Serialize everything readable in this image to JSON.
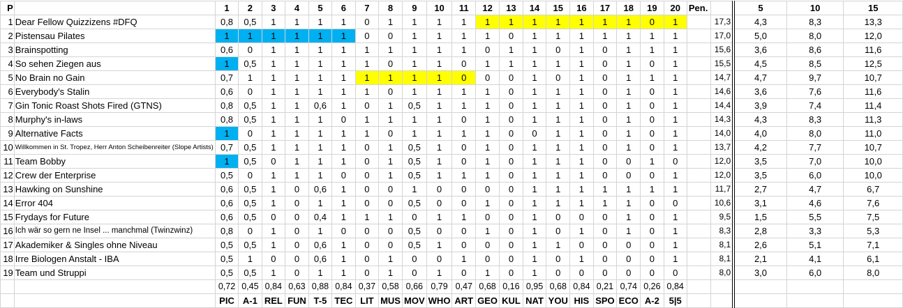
{
  "header": {
    "rank": "P",
    "questions": [
      "1",
      "2",
      "3",
      "4",
      "5",
      "6",
      "7",
      "8",
      "9",
      "10",
      "11",
      "12",
      "13",
      "14",
      "15",
      "16",
      "17",
      "18",
      "19",
      "20"
    ],
    "pen": "Pen.",
    "after": [
      "5",
      "10",
      "15"
    ]
  },
  "colors": {
    "blue": "#00B0F0",
    "yellow": "#FFFF00"
  },
  "rows": [
    {
      "rank": "1",
      "name": "Dear Fellow Quizzizens #DFQ",
      "values": [
        "0,8",
        "0,5",
        "1",
        "1",
        "1",
        "1",
        "0",
        "1",
        "1",
        "1",
        "1",
        "1",
        "1",
        "1",
        "1",
        "1",
        "1",
        "1",
        "0",
        "1"
      ],
      "total": "17,3",
      "after": [
        "4,3",
        "8,3",
        "13,3"
      ],
      "highlight": {
        "color": "yellow",
        "cols": [
          12,
          13,
          14,
          15,
          16,
          17,
          18,
          19,
          20
        ]
      }
    },
    {
      "rank": "2",
      "name": "Pistensau Pilates",
      "values": [
        "1",
        "1",
        "1",
        "1",
        "1",
        "1",
        "0",
        "0",
        "1",
        "1",
        "1",
        "1",
        "0",
        "1",
        "1",
        "1",
        "1",
        "1",
        "1",
        "1"
      ],
      "total": "17,0",
      "after": [
        "5,0",
        "8,0",
        "12,0"
      ],
      "highlight": {
        "color": "blue",
        "cols": [
          1,
          2,
          3,
          4,
          5,
          6
        ]
      }
    },
    {
      "rank": "3",
      "name": "Brainspotting",
      "values": [
        "0,6",
        "0",
        "1",
        "1",
        "1",
        "1",
        "1",
        "1",
        "1",
        "1",
        "1",
        "0",
        "1",
        "1",
        "0",
        "1",
        "0",
        "1",
        "1",
        "1"
      ],
      "total": "15,6",
      "after": [
        "3,6",
        "8,6",
        "11,6"
      ]
    },
    {
      "rank": "4",
      "name": "So sehen Ziegen aus",
      "values": [
        "1",
        "0,5",
        "1",
        "1",
        "1",
        "1",
        "1",
        "0",
        "1",
        "1",
        "0",
        "1",
        "1",
        "1",
        "1",
        "1",
        "0",
        "1",
        "0",
        "1"
      ],
      "total": "15,5",
      "after": [
        "4,5",
        "8,5",
        "12,5"
      ],
      "highlight": {
        "color": "blue",
        "cols": [
          1
        ]
      }
    },
    {
      "rank": "5",
      "name": "No Brain no Gain",
      "values": [
        "0,7",
        "1",
        "1",
        "1",
        "1",
        "1",
        "1",
        "1",
        "1",
        "1",
        "0",
        "0",
        "0",
        "1",
        "0",
        "1",
        "0",
        "1",
        "1",
        "1"
      ],
      "total": "14,7",
      "after": [
        "4,7",
        "9,7",
        "10,7"
      ],
      "highlight": {
        "color": "yellow",
        "cols": [
          7,
          8,
          9,
          10,
          11
        ]
      }
    },
    {
      "rank": "6",
      "name": "Everybody's Stalin",
      "values": [
        "0,6",
        "0",
        "1",
        "1",
        "1",
        "1",
        "1",
        "0",
        "1",
        "1",
        "1",
        "1",
        "0",
        "1",
        "1",
        "1",
        "0",
        "1",
        "0",
        "1"
      ],
      "total": "14,6",
      "after": [
        "3,6",
        "7,6",
        "11,6"
      ]
    },
    {
      "rank": "7",
      "name": "Gin Tonic Roast Shots Fired (GTNS)",
      "values": [
        "0,8",
        "0,5",
        "1",
        "1",
        "0,6",
        "1",
        "0",
        "1",
        "0,5",
        "1",
        "1",
        "1",
        "0",
        "1",
        "1",
        "1",
        "0",
        "1",
        "0",
        "1"
      ],
      "total": "14,4",
      "after": [
        "3,9",
        "7,4",
        "11,4"
      ]
    },
    {
      "rank": "8",
      "name": "Murphy's in-laws",
      "values": [
        "0,8",
        "0,5",
        "1",
        "1",
        "1",
        "0",
        "1",
        "1",
        "1",
        "1",
        "0",
        "1",
        "0",
        "1",
        "1",
        "1",
        "0",
        "1",
        "0",
        "1"
      ],
      "total": "14,3",
      "after": [
        "4,3",
        "8,3",
        "11,3"
      ]
    },
    {
      "rank": "9",
      "name": "Alternative Facts",
      "values": [
        "1",
        "0",
        "1",
        "1",
        "1",
        "1",
        "1",
        "0",
        "1",
        "1",
        "1",
        "1",
        "0",
        "0",
        "1",
        "1",
        "0",
        "1",
        "0",
        "1"
      ],
      "total": "14,0",
      "after": [
        "4,0",
        "8,0",
        "11,0"
      ],
      "highlight": {
        "color": "blue",
        "cols": [
          1
        ]
      }
    },
    {
      "rank": "10",
      "name": "Willkommen in St. Tropez, Herr Anton Scheibenreiter (Slope Artists)",
      "values": [
        "0,7",
        "0,5",
        "1",
        "1",
        "1",
        "1",
        "0",
        "1",
        "0,5",
        "1",
        "0",
        "1",
        "0",
        "1",
        "1",
        "1",
        "0",
        "1",
        "0",
        "1"
      ],
      "total": "13,7",
      "after": [
        "4,2",
        "7,7",
        "10,7"
      ],
      "size": "small10"
    },
    {
      "rank": "11",
      "name": "Team Bobby",
      "values": [
        "1",
        "0,5",
        "0",
        "1",
        "1",
        "1",
        "0",
        "1",
        "0,5",
        "1",
        "0",
        "1",
        "0",
        "1",
        "1",
        "1",
        "0",
        "0",
        "1",
        "0"
      ],
      "total": "12,0",
      "after": [
        "3,5",
        "7,0",
        "10,0"
      ],
      "highlight": {
        "color": "blue",
        "cols": [
          1
        ]
      }
    },
    {
      "rank": "12",
      "name": "Crew der Enterprise",
      "values": [
        "0,5",
        "0",
        "1",
        "1",
        "1",
        "0",
        "0",
        "1",
        "0,5",
        "1",
        "1",
        "1",
        "0",
        "1",
        "1",
        "1",
        "0",
        "0",
        "0",
        "1"
      ],
      "total": "12,0",
      "after": [
        "3,5",
        "6,0",
        "10,0"
      ]
    },
    {
      "rank": "13",
      "name": "Hawking on Sunshine",
      "values": [
        "0,6",
        "0,5",
        "1",
        "0",
        "0,6",
        "1",
        "0",
        "0",
        "1",
        "0",
        "0",
        "0",
        "0",
        "1",
        "1",
        "1",
        "1",
        "1",
        "1",
        "1"
      ],
      "total": "11,7",
      "after": [
        "2,7",
        "4,7",
        "6,7"
      ]
    },
    {
      "rank": "14",
      "name": "Error 404",
      "values": [
        "0,6",
        "0,5",
        "1",
        "0",
        "1",
        "1",
        "0",
        "0",
        "0,5",
        "0",
        "0",
        "1",
        "0",
        "1",
        "1",
        "1",
        "1",
        "1",
        "0",
        "0"
      ],
      "total": "10,6",
      "after": [
        "3,1",
        "4,6",
        "7,6"
      ]
    },
    {
      "rank": "15",
      "name": "Frydays for Future",
      "values": [
        "0,6",
        "0,5",
        "0",
        "0",
        "0,4",
        "1",
        "1",
        "1",
        "0",
        "1",
        "1",
        "0",
        "0",
        "1",
        "0",
        "0",
        "0",
        "1",
        "0",
        "1"
      ],
      "total": "9,5",
      "after": [
        "1,5",
        "5,5",
        "7,5"
      ]
    },
    {
      "rank": "16",
      "name": "Ich wär so gern ne Insel  ... manchmal (Twinzwinz)",
      "values": [
        "0,8",
        "0",
        "1",
        "0",
        "1",
        "0",
        "0",
        "0",
        "0,5",
        "0",
        "0",
        "1",
        "0",
        "1",
        "0",
        "1",
        "0",
        "1",
        "0",
        "1"
      ],
      "total": "8,3",
      "after": [
        "2,8",
        "3,3",
        "5,3"
      ],
      "size": "small16"
    },
    {
      "rank": "17",
      "name": "Akademiker & Singles ohne Niveau",
      "values": [
        "0,5",
        "0,5",
        "1",
        "0",
        "0,6",
        "1",
        "0",
        "0",
        "0,5",
        "1",
        "0",
        "0",
        "0",
        "1",
        "1",
        "0",
        "0",
        "0",
        "0",
        "1"
      ],
      "total": "8,1",
      "after": [
        "2,6",
        "5,1",
        "7,1"
      ]
    },
    {
      "rank": "18",
      "name": "Irre Biologen Anstalt - IBA",
      "values": [
        "0,5",
        "1",
        "0",
        "0",
        "0,6",
        "1",
        "0",
        "1",
        "0",
        "0",
        "1",
        "0",
        "0",
        "1",
        "0",
        "1",
        "0",
        "0",
        "0",
        "1"
      ],
      "total": "8,1",
      "after": [
        "2,1",
        "4,1",
        "6,1"
      ]
    },
    {
      "rank": "19",
      "name": "Team und Struppi",
      "values": [
        "0,5",
        "0,5",
        "1",
        "0",
        "1",
        "1",
        "0",
        "1",
        "0",
        "1",
        "0",
        "1",
        "0",
        "1",
        "0",
        "0",
        "0",
        "0",
        "0",
        "0"
      ],
      "total": "8,0",
      "after": [
        "3,0",
        "6,0",
        "8,0"
      ]
    }
  ],
  "averages": [
    "0,72",
    "0,45",
    "0,84",
    "0,63",
    "0,88",
    "0,84",
    "0,37",
    "0,58",
    "0,66",
    "0,79",
    "0,47",
    "0,68",
    "0,16",
    "0,95",
    "0,68",
    "0,84",
    "0,21",
    "0,74",
    "0,26",
    "0,84"
  ],
  "categories": [
    "PIC",
    "A-1",
    "REL",
    "FUN",
    "T-5",
    "TEC",
    "LIT",
    "MUS",
    "MOV",
    "WHO",
    "ART",
    "GEO",
    "KUL",
    "NAT",
    "YOU",
    "HIS",
    "SPO",
    "ECO",
    "A-2",
    "5|5"
  ]
}
